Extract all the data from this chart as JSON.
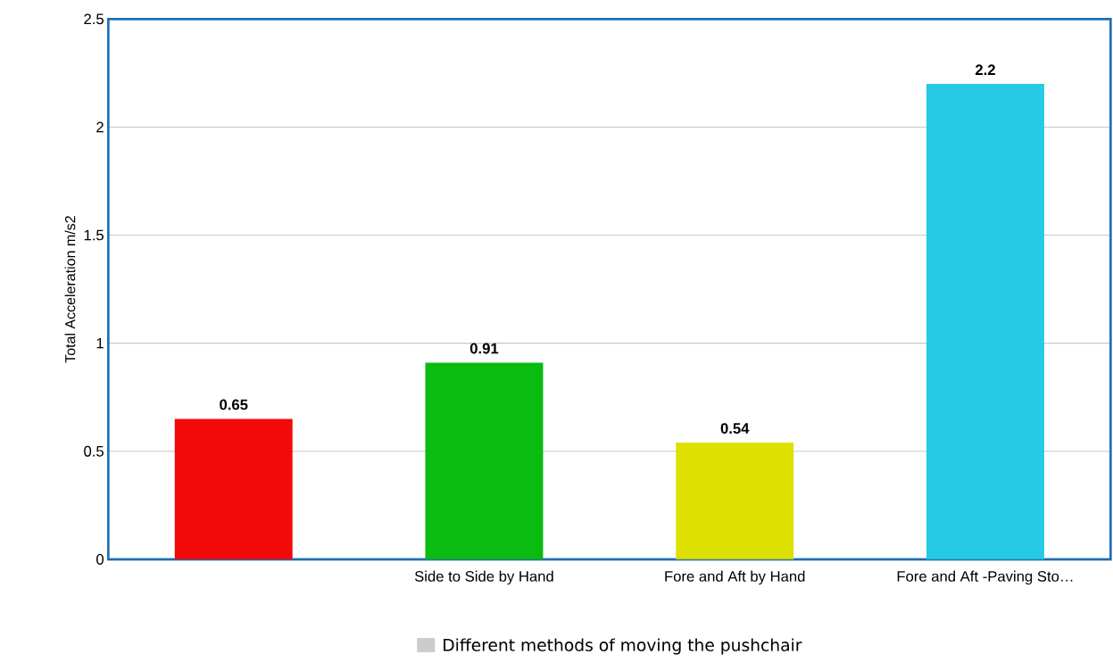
{
  "chart_data": {
    "type": "bar",
    "ylabel": "Total Acceleration m/s2",
    "categories": [
      null,
      "Side to Side by Hand",
      "Fore and Aft by Hand",
      "Fore and Aft -Paving Sto…"
    ],
    "series": [
      {
        "name": "Different methods of moving the pushchair",
        "color": "#cccccc",
        "colors": [
          "#f20a0a",
          "#0abb10",
          "#dde000",
          "#25cae4"
        ],
        "values": [
          0.65,
          0.91,
          0.54,
          2.2
        ]
      }
    ],
    "ylim": [
      0,
      2.5
    ],
    "yticks": [
      0,
      0.5,
      1,
      1.5,
      2,
      2.5
    ],
    "grid": "y",
    "legend": "bottom",
    "data_labels": true
  }
}
